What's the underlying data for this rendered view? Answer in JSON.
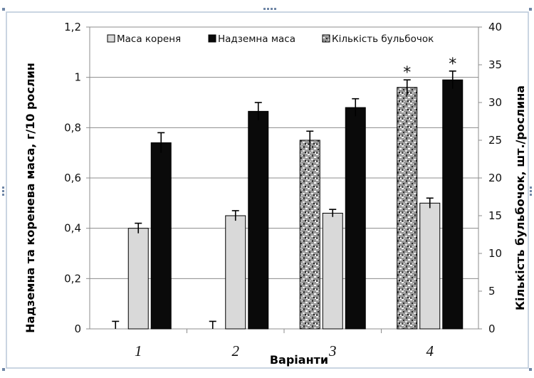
{
  "chart_data": {
    "type": "bar",
    "categories": [
      "1",
      "2",
      "3",
      "4"
    ],
    "xlabel": "Варіанти",
    "ylabel_left": "Надземна та коренева маса, г/10 рослин",
    "ylabel_right": "Кількість бульбочок, шт./рослина",
    "ylim_left": [
      0,
      1.2
    ],
    "ylim_right": [
      0,
      40
    ],
    "yticks_left": [
      "0",
      "0,2",
      "0,4",
      "0,6",
      "0,8",
      "1",
      "1,2"
    ],
    "yticks_right": [
      "0",
      "5",
      "10",
      "15",
      "20",
      "25",
      "30",
      "35",
      "40"
    ],
    "grid": true,
    "legend_position": "top",
    "series": [
      {
        "name": "Маса кореня",
        "axis": "left",
        "values": [
          0.4,
          0.45,
          0.46,
          0.5
        ],
        "errors": [
          0.02,
          0.02,
          0.015,
          0.02
        ],
        "color": "#d9d9d9",
        "pattern": "solid"
      },
      {
        "name": "Надземна маса",
        "axis": "left",
        "values": [
          0.74,
          0.865,
          0.88,
          0.99
        ],
        "errors": [
          0.04,
          0.035,
          0.035,
          0.035
        ],
        "color": "#0a0a0a",
        "pattern": "solid",
        "significance": [
          "",
          "",
          "",
          "*"
        ]
      },
      {
        "name": "Кількість бульбочок",
        "axis": "right",
        "values": [
          0,
          0,
          25,
          32
        ],
        "errors": [
          1,
          1,
          1.2,
          1
        ],
        "color": "#a8a8a8",
        "pattern": "granite",
        "significance": [
          "",
          "",
          "",
          "*"
        ]
      }
    ]
  }
}
